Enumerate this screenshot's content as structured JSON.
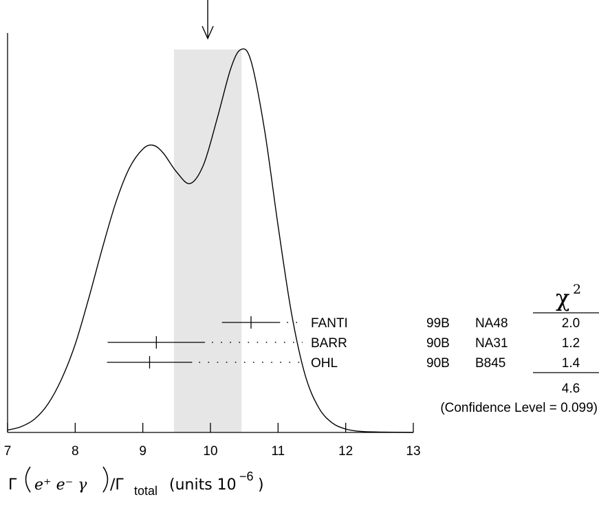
{
  "chart_data": {
    "type": "ideogram",
    "x_axis": {
      "range": [
        7,
        13
      ],
      "ticks": [
        7,
        8,
        9,
        10,
        11,
        12,
        13
      ],
      "label": {
        "prefix": "Γ",
        "particles": "e⁺ e⁻ γ",
        "suffix": "/Γ",
        "subscript": "total",
        "units": "(units 10",
        "units_exp": "−6",
        "units_close": ")"
      }
    },
    "average": {
      "value": 9.96,
      "band": [
        9.46,
        10.46
      ]
    },
    "chi2_header": {
      "symbol": "χ",
      "exponent": "2"
    },
    "measurements": [
      {
        "value": 10.6,
        "error": 0.43,
        "name": "FANTI",
        "year": "99B",
        "experiment": "NA48",
        "chi2": "2.0"
      },
      {
        "value": 9.2,
        "error": 0.72,
        "name": "BARR",
        "year": "90B",
        "experiment": "NA31",
        "chi2": "1.2"
      },
      {
        "value": 9.1,
        "error": 0.63,
        "name": "OHL",
        "year": "90B",
        "experiment": "B845",
        "chi2": "1.4"
      }
    ],
    "chi2_total": "4.6",
    "confidence_level": "(Confidence Level = 0.099)",
    "curve": [
      [
        7.0,
        0.006
      ],
      [
        7.2,
        0.015
      ],
      [
        7.4,
        0.035
      ],
      [
        7.6,
        0.075
      ],
      [
        7.8,
        0.14
      ],
      [
        8.0,
        0.23
      ],
      [
        8.2,
        0.35
      ],
      [
        8.4,
        0.48
      ],
      [
        8.6,
        0.6
      ],
      [
        8.8,
        0.69
      ],
      [
        9.0,
        0.74
      ],
      [
        9.15,
        0.75
      ],
      [
        9.3,
        0.73
      ],
      [
        9.5,
        0.68
      ],
      [
        9.7,
        0.65
      ],
      [
        9.9,
        0.7
      ],
      [
        10.1,
        0.82
      ],
      [
        10.3,
        0.95
      ],
      [
        10.45,
        1.0
      ],
      [
        10.6,
        0.97
      ],
      [
        10.8,
        0.79
      ],
      [
        11.0,
        0.54
      ],
      [
        11.2,
        0.31
      ],
      [
        11.4,
        0.15
      ],
      [
        11.6,
        0.065
      ],
      [
        11.8,
        0.025
      ],
      [
        12.0,
        0.009
      ],
      [
        12.2,
        0.003
      ],
      [
        12.5,
        0.001
      ],
      [
        13.0,
        0.0
      ]
    ]
  }
}
